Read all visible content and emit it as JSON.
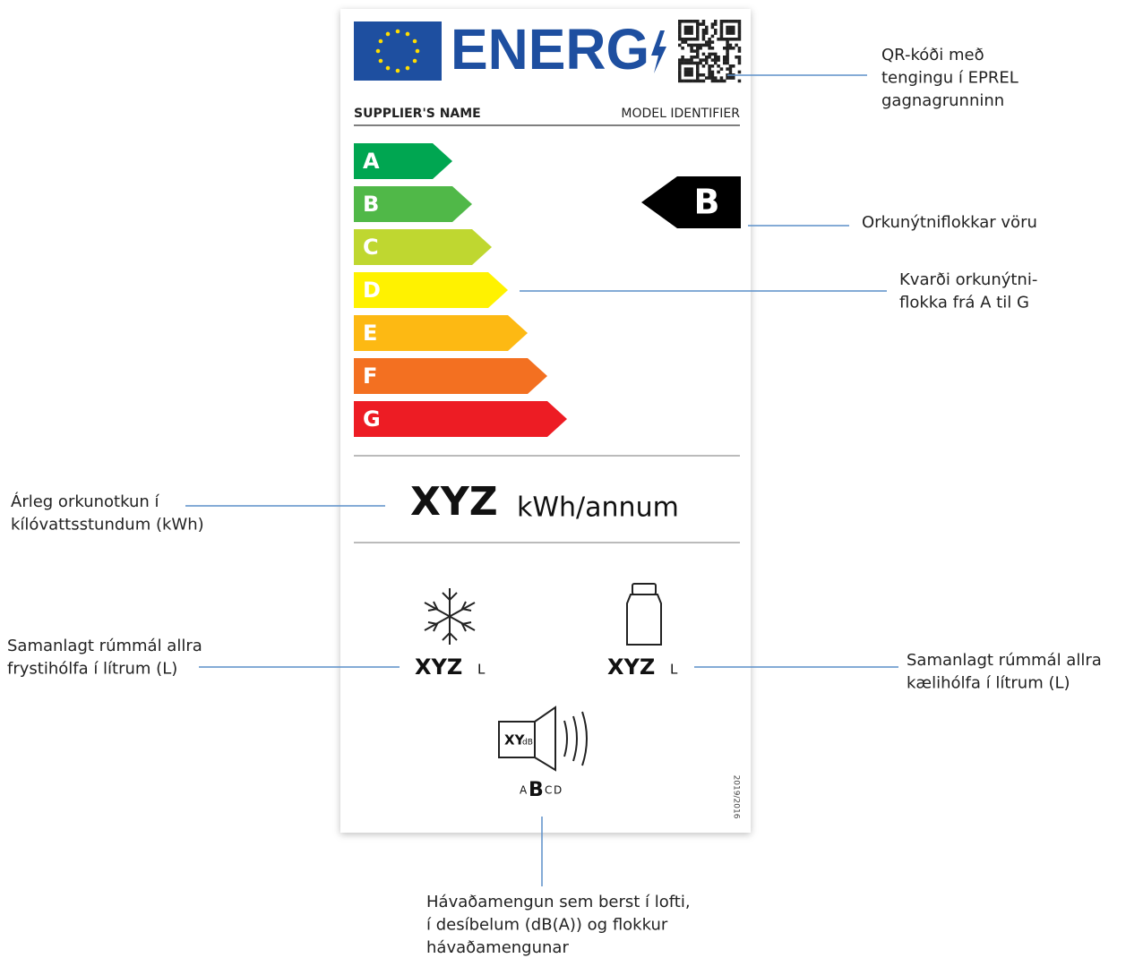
{
  "label": {
    "logo": "ENERG",
    "supplier": "SUPPLIER'S NAME",
    "model": "MODEL IDENTIFIER",
    "scale": [
      {
        "letter": "A",
        "color": "#00a651"
      },
      {
        "letter": "B",
        "color": "#50b848"
      },
      {
        "letter": "C",
        "color": "#bfd730"
      },
      {
        "letter": "D",
        "color": "#fff200"
      },
      {
        "letter": "E",
        "color": "#fdb913"
      },
      {
        "letter": "F",
        "color": "#f37021"
      },
      {
        "letter": "G",
        "color": "#ed1c24"
      }
    ],
    "rating": "B",
    "energy": {
      "value": "XYZ",
      "unit": "kWh/annum"
    },
    "freezer": {
      "value": "XYZ",
      "unit": "L"
    },
    "fridge": {
      "value": "XYZ",
      "unit": "L"
    },
    "noise": {
      "value": "XY",
      "unit": "dB",
      "classes": [
        "A",
        "B",
        "C",
        "D"
      ]
    },
    "regulation": "2019/2016"
  },
  "annotations": [
    {
      "lines": [
        "QR-kóði með",
        "tengingu í EPREL",
        "gagnagrunninn"
      ]
    },
    {
      "lines": [
        "Orkunýtniflokkar vöru"
      ]
    },
    {
      "lines": [
        "Kvarði orkunýtni-",
        "flokka frá A til G"
      ]
    },
    {
      "lines": [
        "Árleg orkunotkun í",
        "kílóvattsstundum (kWh)"
      ]
    },
    {
      "lines": [
        "Samanlagt rúmmál allra",
        "frystihólfa í lítrum (L)"
      ]
    },
    {
      "lines": [
        "Samanlagt rúmmál allra",
        "kælihólfa í lítrum (L)"
      ]
    },
    {
      "lines": [
        "Hávaðamengun sem berst í lofti,",
        "í desíbelum (dB(A)) og flokkur",
        "hávaðamengunar"
      ]
    }
  ]
}
